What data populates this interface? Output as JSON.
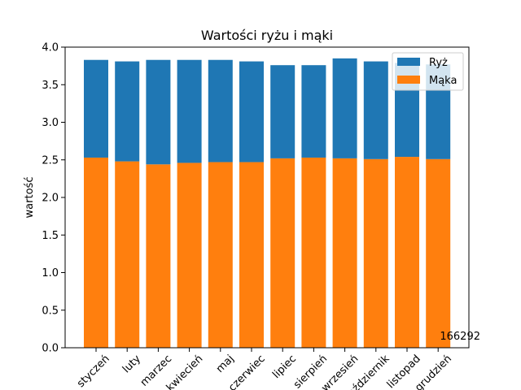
{
  "chart_data": {
    "type": "bar",
    "stacked": true,
    "title": "Wartości ryżu i mąki",
    "xlabel": "",
    "ylabel": "wartość",
    "ylim": [
      0,
      4.0
    ],
    "yticks": [
      "0.0",
      "0.5",
      "1.0",
      "1.5",
      "2.0",
      "2.5",
      "3.0",
      "3.5",
      "4.0"
    ],
    "categories": [
      "styczeń",
      "luty",
      "marzec",
      "kwiecień",
      "maj",
      "czerwiec",
      "lipiec",
      "sierpień",
      "wrzesień",
      "październik",
      "listopad",
      "grudzień"
    ],
    "series": [
      {
        "name": "Mąka",
        "color": "#ff7f0e",
        "values": [
          2.53,
          2.48,
          2.44,
          2.46,
          2.47,
          2.47,
          2.52,
          2.53,
          2.52,
          2.51,
          2.54,
          2.51
        ]
      },
      {
        "name": "Ryż",
        "color": "#1f77b4",
        "values": [
          1.3,
          1.33,
          1.39,
          1.37,
          1.36,
          1.34,
          1.24,
          1.23,
          1.33,
          1.3,
          1.25,
          1.26
        ]
      }
    ],
    "legend": {
      "position": "top-right",
      "order": [
        "Ryż",
        "Mąka"
      ]
    },
    "grid": false,
    "annotation": "166292"
  }
}
